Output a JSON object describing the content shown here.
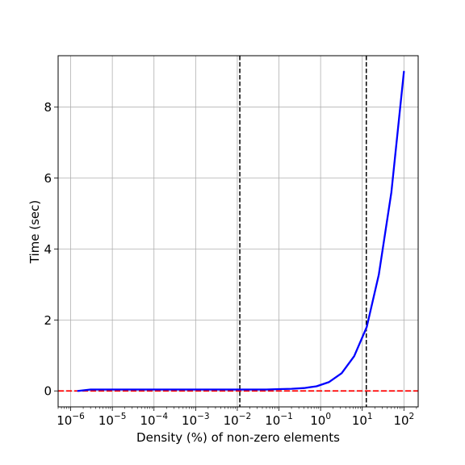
{
  "chart_data": {
    "type": "line",
    "xlabel": "Density (%) of non-zero elements",
    "ylabel": "Time (sec)",
    "x_scale": "log",
    "xlim": [
      5e-07,
      220
    ],
    "ylim": [
      -0.45,
      9.45
    ],
    "grid": true,
    "x_ticks": [
      {
        "value": 1e-06,
        "base": "10",
        "exp": "−6"
      },
      {
        "value": 1e-05,
        "base": "10",
        "exp": "−5"
      },
      {
        "value": 0.0001,
        "base": "10",
        "exp": "−4"
      },
      {
        "value": 0.001,
        "base": "10",
        "exp": "−3"
      },
      {
        "value": 0.01,
        "base": "10",
        "exp": "−2"
      },
      {
        "value": 0.1,
        "base": "10",
        "exp": "−1"
      },
      {
        "value": 1,
        "base": "10",
        "exp": "0"
      },
      {
        "value": 10,
        "base": "10",
        "exp": "1"
      },
      {
        "value": 100,
        "base": "10",
        "exp": "2"
      }
    ],
    "y_ticks": [
      {
        "value": 0,
        "label": "0"
      },
      {
        "value": 2,
        "label": "2"
      },
      {
        "value": 4,
        "label": "4"
      },
      {
        "value": 6,
        "label": "6"
      },
      {
        "value": 8,
        "label": "8"
      }
    ],
    "series": [
      {
        "color": "#0000ff",
        "x": [
          1.5e-06,
          3e-06,
          6e-06,
          1e-05,
          0.0001,
          0.001,
          0.01,
          0.05,
          0.1,
          0.2,
          0.4,
          0.8,
          1.6,
          3.2,
          6.4,
          12.8,
          25,
          50,
          100
        ],
        "y": [
          0.0,
          0.04,
          0.04,
          0.04,
          0.04,
          0.04,
          0.04,
          0.04,
          0.05,
          0.06,
          0.08,
          0.13,
          0.25,
          0.5,
          0.98,
          1.8,
          3.28,
          5.6,
          9.0
        ]
      }
    ],
    "reference_lines": [
      {
        "orientation": "vertical",
        "value": 0.0115,
        "color": "#000000",
        "style": "dashed"
      },
      {
        "orientation": "vertical",
        "value": 12.5,
        "color": "#000000",
        "style": "dashed"
      },
      {
        "orientation": "horizontal",
        "value": 0,
        "color": "#ff0000",
        "style": "dashed"
      }
    ]
  }
}
